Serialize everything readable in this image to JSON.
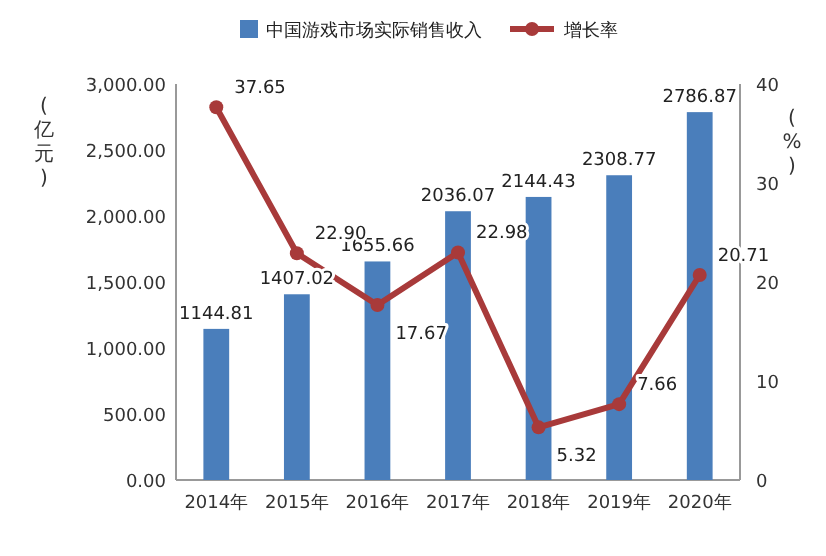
{
  "chart_data": {
    "type": "bar",
    "ylabel": "(亿元)",
    "y2label": "(%)",
    "categories": [
      "2014年",
      "2015年",
      "2016年",
      "2017年",
      "2018年",
      "2019年",
      "2020年"
    ],
    "series": [
      {
        "name": "中国游戏市场实际销售收入",
        "color": "#4a7ebb",
        "values": [
          1144.81,
          1407.02,
          1655.66,
          2036.07,
          2144.43,
          2308.77,
          2786.87
        ]
      },
      {
        "name": "增长率",
        "type": "line",
        "axis": "y2",
        "color": "#a83a3a",
        "marker": "circle",
        "values": [
          37.65,
          22.9,
          17.67,
          22.98,
          5.32,
          7.66,
          20.71
        ],
        "value_labels": [
          "37.65",
          "22.90",
          "17.67",
          "22.98",
          "5.32",
          "7.66",
          "20.71"
        ]
      }
    ],
    "ylim": [
      0,
      3000
    ],
    "yticks": [
      {
        "value": 0,
        "label": "0.00"
      },
      {
        "value": 500,
        "label": "500.00"
      },
      {
        "value": 1000,
        "label": "1,000.00"
      },
      {
        "value": 1500,
        "label": "1,500.00"
      },
      {
        "value": 2000,
        "label": "2,000.00"
      },
      {
        "value": 2500,
        "label": "2,500.00"
      },
      {
        "value": 3000,
        "label": "3,000.00"
      }
    ],
    "y2lim": [
      0,
      40
    ],
    "y2ticks": [
      0,
      10,
      20,
      30,
      40
    ],
    "data_labels": true,
    "legend": "top",
    "grid": false
  }
}
